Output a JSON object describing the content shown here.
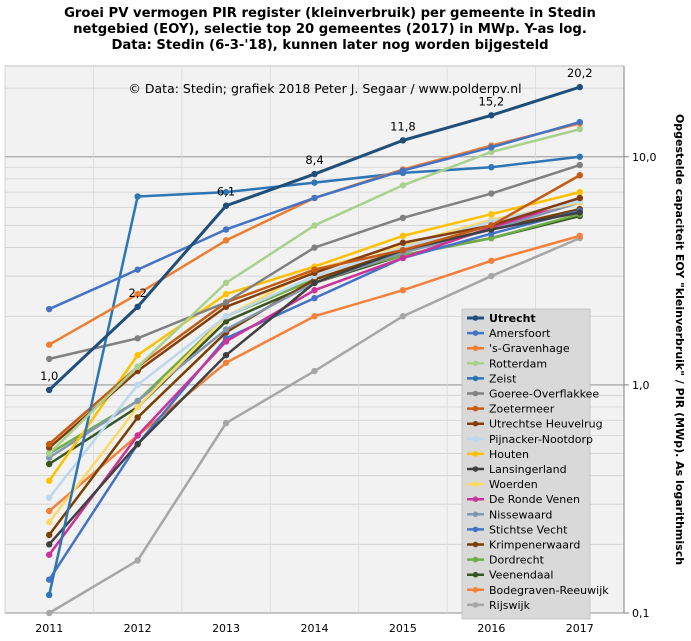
{
  "title_lines": [
    "Groei PV vermogen PIR register (kleinverbruik)  per gemeente in Stedin",
    "netgebied (EOY), selectie top 20 gemeentes (2017) in MWp. Y-as log.",
    "Data: Stedin (6-3-'18), kunnen later nog worden bijgesteld"
  ],
  "chart_data": {
    "type": "line",
    "title": "Groei PV vermogen PIR register (kleinverbruik) per gemeente in Stedin netgebied (EOY), selectie top 20 gemeentes (2017) in MWp. Y-as log. Data: Stedin (6-3-'18), kunnen later nog worden bijgesteld",
    "annotation": "© Data: Stedin; grafiek 2018 Peter J. Segaar / www.polderpv.nl",
    "xlabel": "",
    "ylabel": "Opgestelde capaciteit EOY \"kleinverbruik\" / PIR (MWp). As logarithmisch",
    "y_scale": "log",
    "ylim": [
      0.1,
      25
    ],
    "y_ticks": [
      0.1,
      1.0,
      10.0
    ],
    "y_tick_labels": [
      "0,1",
      "1,0",
      "10,0"
    ],
    "x": [
      2011,
      2012,
      2013,
      2014,
      2015,
      2016,
      2017
    ],
    "x_tick_labels": [
      "2011",
      "2012",
      "2013",
      "2014",
      "2015",
      "2016",
      "2017"
    ],
    "grid": true,
    "legend_position": "bottom-right",
    "data_labels": [
      {
        "series": "Utrecht",
        "x": 2011,
        "text": "1,0"
      },
      {
        "series": "Utrecht",
        "x": 2012,
        "text": "2,2"
      },
      {
        "series": "Utrecht",
        "x": 2013,
        "text": "6,1"
      },
      {
        "series": "Utrecht",
        "x": 2014,
        "text": "8,4"
      },
      {
        "series": "Utrecht",
        "x": 2015,
        "text": "11,8"
      },
      {
        "series": "Utrecht",
        "x": 2016,
        "text": "15,2"
      },
      {
        "series": "Utrecht",
        "x": 2017,
        "text": "20,2"
      }
    ],
    "series": [
      {
        "name": "Utrecht",
        "color": "#1f4e79",
        "bold": true,
        "values": [
          0.95,
          2.2,
          6.1,
          8.4,
          11.8,
          15.2,
          20.2
        ]
      },
      {
        "name": "Amersfoort",
        "color": "#4472c4",
        "values": [
          2.15,
          3.2,
          4.8,
          6.6,
          8.7,
          11.0,
          14.2
        ]
      },
      {
        "name": "'s-Gravenhage",
        "color": "#ed7d31",
        "values": [
          1.5,
          2.5,
          4.3,
          6.6,
          8.8,
          11.2,
          14.0
        ]
      },
      {
        "name": "Rotterdam",
        "color": "#a9d18e",
        "values": [
          0.5,
          1.2,
          2.8,
          5.0,
          7.5,
          10.5,
          13.2
        ]
      },
      {
        "name": "Zeist",
        "color": "#2e75b6",
        "values": [
          0.12,
          6.7,
          7.0,
          7.7,
          8.5,
          9.0,
          10.0
        ]
      },
      {
        "name": "Goeree-Overflakkee",
        "color": "#808080",
        "values": [
          1.3,
          1.6,
          2.3,
          4.0,
          5.4,
          6.9,
          9.2
        ]
      },
      {
        "name": "Zoetermeer",
        "color": "#c55a11",
        "values": [
          0.55,
          1.2,
          2.3,
          3.2,
          3.9,
          5.0,
          8.3
        ]
      },
      {
        "name": "Utrechtse Heuvelrug",
        "color": "#843c0c",
        "values": [
          0.53,
          1.15,
          2.2,
          3.1,
          4.2,
          5.0,
          6.6
        ]
      },
      {
        "name": "Pijnacker-Nootdorp",
        "color": "#bdd7ee",
        "values": [
          0.32,
          1.0,
          2.0,
          3.0,
          4.0,
          5.2,
          6.4
        ]
      },
      {
        "name": "Houten",
        "color": "#ffc000",
        "values": [
          0.38,
          1.35,
          2.5,
          3.3,
          4.5,
          5.6,
          7.0
        ]
      },
      {
        "name": "Lansingerland",
        "color": "#404040",
        "values": [
          0.2,
          0.55,
          1.35,
          2.8,
          3.9,
          4.8,
          5.7
        ]
      },
      {
        "name": "Woerden",
        "color": "#ffd966",
        "values": [
          0.25,
          0.8,
          2.0,
          3.2,
          4.1,
          5.3,
          6.3
        ]
      },
      {
        "name": "De Ronde Venen",
        "color": "#cc3399",
        "values": [
          0.18,
          0.6,
          1.55,
          2.6,
          3.6,
          4.9,
          6.5
        ]
      },
      {
        "name": "Nissewaard",
        "color": "#8497b0",
        "values": [
          0.48,
          0.85,
          1.75,
          2.8,
          3.8,
          4.8,
          6.3
        ]
      },
      {
        "name": "Stichtse Vecht",
        "color": "#4472c4",
        "values": [
          0.14,
          0.55,
          1.6,
          2.4,
          3.6,
          4.6,
          5.8
        ]
      },
      {
        "name": "Krimpenerwaard",
        "color": "#7b3f00",
        "values": [
          0.22,
          0.72,
          1.7,
          2.9,
          3.9,
          4.8,
          5.9
        ]
      },
      {
        "name": "Dordrecht",
        "color": "#70ad47",
        "values": [
          0.5,
          0.85,
          2.0,
          2.9,
          3.7,
          4.4,
          5.6
        ]
      },
      {
        "name": "Veenendaal",
        "color": "#375623",
        "values": [
          0.45,
          0.8,
          1.9,
          2.8,
          3.7,
          4.4,
          5.5
        ]
      },
      {
        "name": "Bodegraven-Reeuwijk",
        "color": "#f4803c",
        "values": [
          0.28,
          0.6,
          1.25,
          2.0,
          2.6,
          3.5,
          4.5
        ]
      },
      {
        "name": "Rijswijk",
        "color": "#a6a6a6",
        "values": [
          0.1,
          0.17,
          0.68,
          1.15,
          2.0,
          3.0,
          4.4
        ]
      }
    ]
  }
}
